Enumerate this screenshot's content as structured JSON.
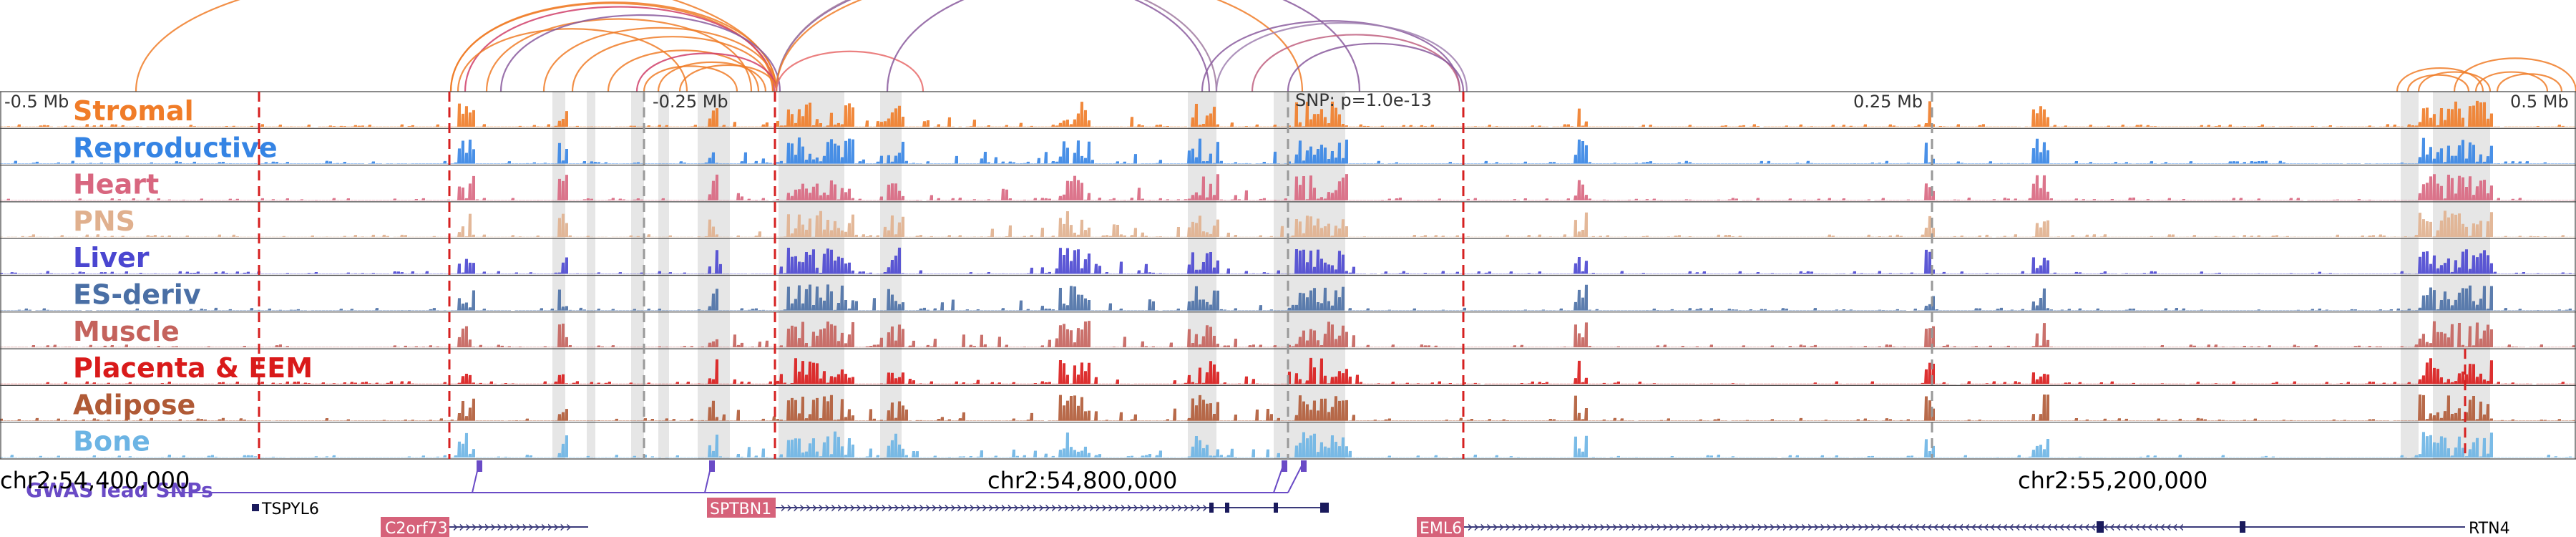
{
  "distance_labels": {
    "left": "-0.5 Mb",
    "left_mid": "-0.25 Mb",
    "snp": "SNP: p=1.0e-13",
    "right_mid": "0.25 Mb",
    "right": "0.5 Mb"
  },
  "tracks": [
    {
      "label": "Stromal",
      "color": "#f07c28"
    },
    {
      "label": "Reproductive",
      "color": "#3584e4"
    },
    {
      "label": "Heart",
      "color": "#d8667f"
    },
    {
      "label": "PNS",
      "color": "#e0b08e"
    },
    {
      "label": "Liver",
      "color": "#4a46d0"
    },
    {
      "label": "ES-deriv",
      "color": "#4a6fa5"
    },
    {
      "label": "Muscle",
      "color": "#c4625c"
    },
    {
      "label": "Placenta & EEM",
      "color": "#d91a1a"
    },
    {
      "label": "Adipose",
      "color": "#b05a36"
    },
    {
      "label": "Bone",
      "color": "#6cb4e4"
    }
  ],
  "gwas": {
    "label": "GWAS lead SNPs",
    "color": "#6a4bc6"
  },
  "coordinates": {
    "left": "chr2:54,400,000",
    "mid": "chr2:54,800,000",
    "right": "chr2:55,200,000"
  },
  "genes": [
    {
      "name": "TSPYL6",
      "highlighted": false
    },
    {
      "name": "C2orf73",
      "highlighted": true
    },
    {
      "name": "SPTBN1",
      "highlighted": true
    },
    {
      "name": "EML6",
      "highlighted": true
    },
    {
      "name": "RTN4",
      "highlighted": false
    }
  ],
  "colors": {
    "highlight_gene_bg": "#d6627a",
    "red_marker": "#d62020",
    "gray_marker": "#999999",
    "arc_orange": "#f07c28",
    "arc_purple": "#8a5a9e"
  }
}
